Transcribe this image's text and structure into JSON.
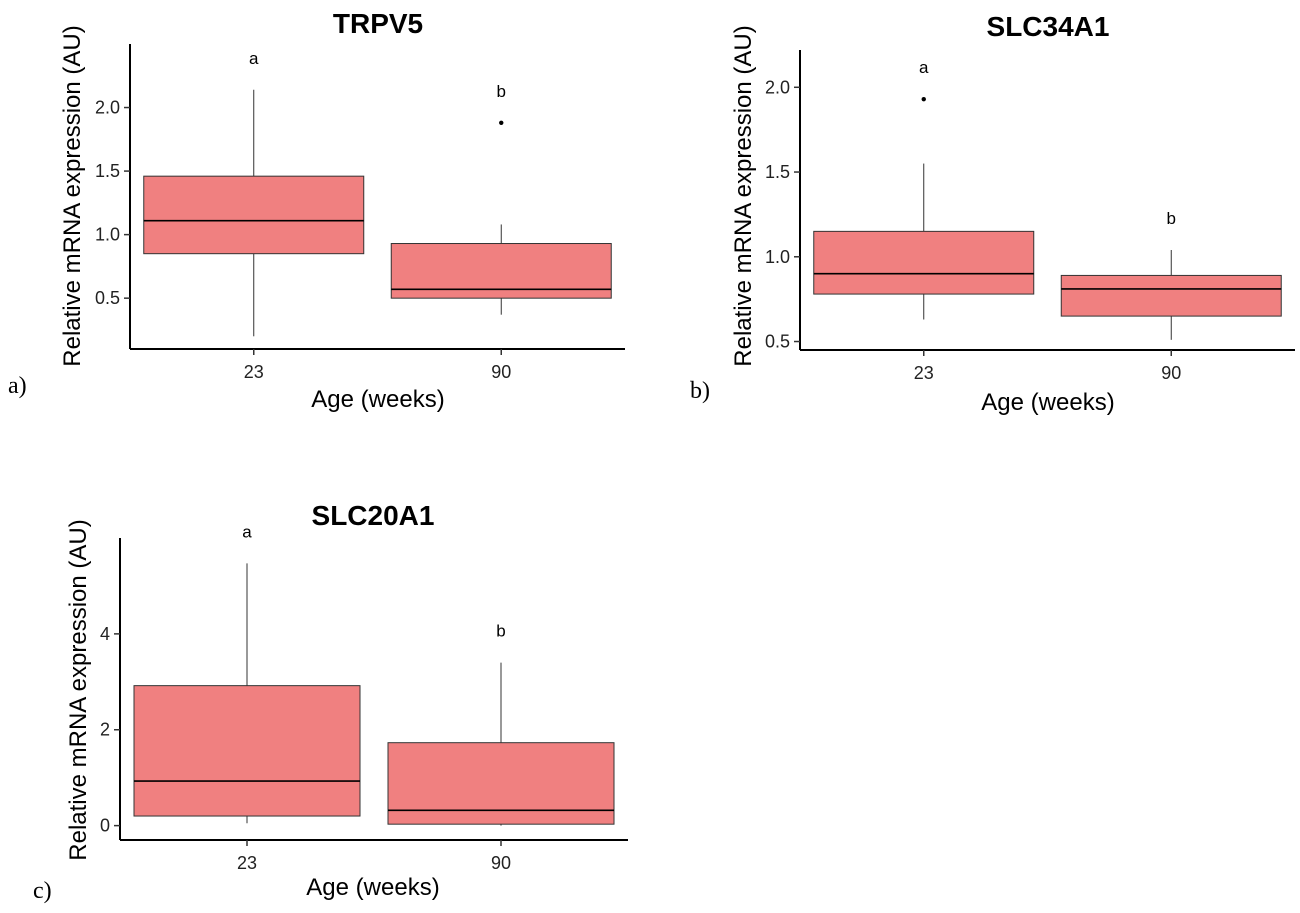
{
  "chart_data": [
    {
      "type": "boxplot",
      "panel_label": "a)",
      "title": "TRPV5",
      "xlabel": "Age (weeks)",
      "ylabel": "Relative mRNA expression (AU)",
      "ylim": [
        0.1,
        2.5
      ],
      "yticks": [
        0.5,
        1.0,
        1.5,
        2.0
      ],
      "ytick_labels": [
        "0.5",
        "1.0",
        "1.5",
        "2.0"
      ],
      "categories": [
        "23",
        "90"
      ],
      "box_color": "#F08080",
      "boxes": [
        {
          "category": "23",
          "whisker_low": 0.2,
          "q1": 0.85,
          "median": 1.11,
          "q3": 1.46,
          "whisker_high": 2.14,
          "outliers": [],
          "letter": "a"
        },
        {
          "category": "90",
          "whisker_low": 0.37,
          "q1": 0.5,
          "median": 0.57,
          "q3": 0.93,
          "whisker_high": 1.08,
          "outliers": [
            1.88
          ],
          "letter": "b"
        }
      ]
    },
    {
      "type": "boxplot",
      "panel_label": "b)",
      "title": "SLC34A1",
      "xlabel": "Age (weeks)",
      "ylabel": "Relative mRNA expression (AU)",
      "ylim": [
        0.45,
        2.22
      ],
      "yticks": [
        0.5,
        1.0,
        1.5,
        2.0
      ],
      "ytick_labels": [
        "0.5",
        "1.0",
        "1.5",
        "2.0"
      ],
      "categories": [
        "23",
        "90"
      ],
      "box_color": "#F08080",
      "boxes": [
        {
          "category": "23",
          "whisker_low": 0.63,
          "q1": 0.78,
          "median": 0.9,
          "q3": 1.15,
          "whisker_high": 1.55,
          "outliers": [
            1.93
          ],
          "letter": "a"
        },
        {
          "category": "90",
          "whisker_low": 0.51,
          "q1": 0.65,
          "median": 0.81,
          "q3": 0.89,
          "whisker_high": 1.04,
          "outliers": [],
          "letter": "b"
        }
      ]
    },
    {
      "type": "boxplot",
      "panel_label": "c)",
      "title": "SLC20A1",
      "xlabel": "Age (weeks)",
      "ylabel": "Relative mRNA expression (AU)",
      "ylim": [
        -0.3,
        6.0
      ],
      "yticks": [
        0,
        2,
        4
      ],
      "ytick_labels": [
        "0",
        "2",
        "4"
      ],
      "categories": [
        "23",
        "90"
      ],
      "box_color": "#F08080",
      "boxes": [
        {
          "category": "23",
          "whisker_low": 0.05,
          "q1": 0.2,
          "median": 0.93,
          "q3": 2.92,
          "whisker_high": 5.47,
          "outliers": [],
          "letter": "a"
        },
        {
          "category": "90",
          "whisker_low": 0.0,
          "q1": 0.03,
          "median": 0.32,
          "q3": 1.73,
          "whisker_high": 3.4,
          "outliers": [],
          "letter": "b"
        }
      ]
    }
  ]
}
